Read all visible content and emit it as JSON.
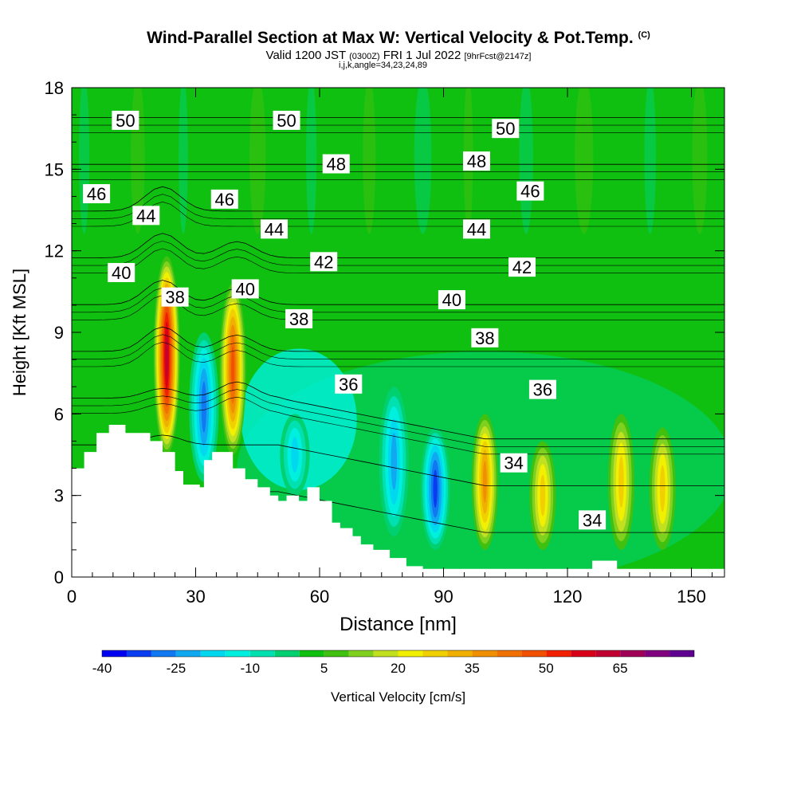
{
  "title": {
    "main": "Wind-Parallel Section at Max W: Vertical Velocity & Pot.Temp.",
    "copyright": "(C)",
    "valid_prefix": "Valid 1200 JST",
    "valid_utc": "(0300Z)",
    "valid_date": "FRI 1 Jul 2022",
    "forecast": "[9hrFcst@2147z]",
    "indices": "i,j,k,angle=34,23,24,89"
  },
  "chart_data": {
    "type": "heatmap",
    "xlabel": "Distance [nm]",
    "ylabel": "Height [Kft MSL]",
    "xlim": [
      0,
      158
    ],
    "ylim": [
      0,
      18
    ],
    "x_ticks": [
      0,
      30,
      60,
      90,
      120,
      150
    ],
    "y_ticks": [
      0,
      3,
      6,
      9,
      12,
      15,
      18
    ],
    "colorbar": {
      "label": "Vertical Velocity [cm/s]",
      "tick_labels": [
        "-40",
        "-25",
        "-10",
        "5",
        "20",
        "35",
        "50",
        "65"
      ],
      "tick_values": [
        -40,
        -25,
        -10,
        5,
        20,
        35,
        50,
        65
      ],
      "bins": [
        -40,
        -35,
        -30,
        -25,
        -20,
        -15,
        -10,
        -5,
        0,
        5,
        10,
        15,
        20,
        25,
        30,
        35,
        40,
        45,
        50,
        55,
        60,
        65,
        70,
        75
      ],
      "colors": [
        "#0000f0",
        "#0a3cf0",
        "#1078f0",
        "#10a8f0",
        "#00d8f0",
        "#00f0e0",
        "#00e0b0",
        "#00d070",
        "#10c010",
        "#40c010",
        "#80d020",
        "#c0e020",
        "#f0f000",
        "#f0d000",
        "#f0b000",
        "#f09000",
        "#f07000",
        "#f05000",
        "#f02000",
        "#d80018",
        "#c00030",
        "#a00058",
        "#800080",
        "#600090"
      ]
    },
    "vertical_velocity_features": [
      {
        "x": 23,
        "y_range": [
          4.5,
          11.8
        ],
        "peak_cm_s": 60,
        "sign": "up"
      },
      {
        "x": 39,
        "y_range": [
          4.5,
          10.8
        ],
        "peak_cm_s": 45,
        "sign": "up"
      },
      {
        "x": 32,
        "y_range": [
          3.5,
          9
        ],
        "peak_cm_s": -30,
        "sign": "down"
      },
      {
        "x": 54,
        "y_range": [
          3,
          6
        ],
        "peak_cm_s": -20,
        "sign": "down"
      },
      {
        "x": 78,
        "y_range": [
          1.5,
          7
        ],
        "peak_cm_s": -25,
        "sign": "down"
      },
      {
        "x": 88,
        "y_range": [
          1,
          5.5
        ],
        "peak_cm_s": -35,
        "sign": "down"
      },
      {
        "x": 100,
        "y_range": [
          1,
          6
        ],
        "peak_cm_s": 35,
        "sign": "up"
      },
      {
        "x": 114,
        "y_range": [
          1,
          5
        ],
        "peak_cm_s": 25,
        "sign": "up"
      },
      {
        "x": 133,
        "y_range": [
          1,
          6
        ],
        "peak_cm_s": 25,
        "sign": "up"
      },
      {
        "x": 143,
        "y_range": [
          1,
          5.5
        ],
        "peak_cm_s": 25,
        "sign": "up"
      }
    ],
    "potential_temperature_contours": [
      {
        "value": 50,
        "label": "50",
        "label_points": [
          [
            13,
            16.8
          ],
          [
            52,
            16.8
          ],
          [
            105,
            16.5
          ]
        ]
      },
      {
        "value": 48,
        "label": "48",
        "label_points": [
          [
            64,
            15.2
          ],
          [
            98,
            15.3
          ]
        ]
      },
      {
        "value": 46,
        "label": "46",
        "label_points": [
          [
            6,
            14.1
          ],
          [
            37,
            13.9
          ],
          [
            111,
            14.2
          ]
        ]
      },
      {
        "value": 44,
        "label": "44",
        "label_points": [
          [
            18,
            13.3
          ],
          [
            49,
            12.8
          ],
          [
            98,
            12.8
          ]
        ]
      },
      {
        "value": 42,
        "label": "42",
        "label_points": [
          [
            61,
            11.6
          ],
          [
            109,
            11.4
          ]
        ]
      },
      {
        "value": 40,
        "label": "40",
        "label_points": [
          [
            12,
            11.2
          ],
          [
            42,
            10.6
          ],
          [
            92,
            10.2
          ]
        ]
      },
      {
        "value": 38,
        "label": "38",
        "label_points": [
          [
            25,
            10.3
          ],
          [
            55,
            9.5
          ],
          [
            100,
            8.8
          ]
        ]
      },
      {
        "value": 36,
        "label": "36",
        "label_points": [
          [
            67,
            7.1
          ],
          [
            114,
            6.9
          ]
        ]
      },
      {
        "value": 34,
        "label": "34",
        "label_points": [
          [
            107,
            4.2
          ],
          [
            126,
            2.1
          ]
        ]
      }
    ],
    "terrain": {
      "x": [
        0,
        3,
        3,
        6,
        6,
        9,
        9,
        13,
        13,
        19,
        19,
        22,
        22,
        25,
        25,
        27,
        27,
        31,
        31,
        32,
        32,
        34,
        34,
        39,
        39,
        42,
        42,
        45,
        45,
        48,
        48,
        50,
        50,
        52,
        52,
        55,
        55,
        57,
        57,
        60,
        60,
        63,
        63,
        65,
        65,
        68,
        68,
        70,
        70,
        73,
        73,
        77,
        77,
        81,
        81,
        85,
        85,
        88,
        88,
        126,
        126,
        132,
        132,
        138,
        138,
        158
      ],
      "y": [
        4.0,
        4.0,
        4.6,
        4.6,
        5.3,
        5.3,
        5.6,
        5.6,
        5.3,
        5.3,
        5.0,
        5.0,
        4.6,
        4.6,
        3.9,
        3.9,
        3.4,
        3.4,
        3.3,
        3.3,
        4.3,
        4.3,
        4.6,
        4.6,
        4.0,
        4.0,
        3.6,
        3.6,
        3.3,
        3.3,
        3.0,
        3.0,
        2.8,
        2.8,
        3.0,
        3.0,
        2.8,
        2.8,
        3.3,
        3.3,
        2.8,
        2.8,
        2.0,
        2.0,
        1.8,
        1.8,
        1.5,
        1.5,
        1.2,
        1.2,
        1.0,
        1.0,
        0.7,
        0.7,
        0.4,
        0.4,
        0.3,
        0.3,
        0.3,
        0.3,
        0.6,
        0.6,
        0.3,
        0.3,
        0.3,
        0.3
      ]
    }
  }
}
